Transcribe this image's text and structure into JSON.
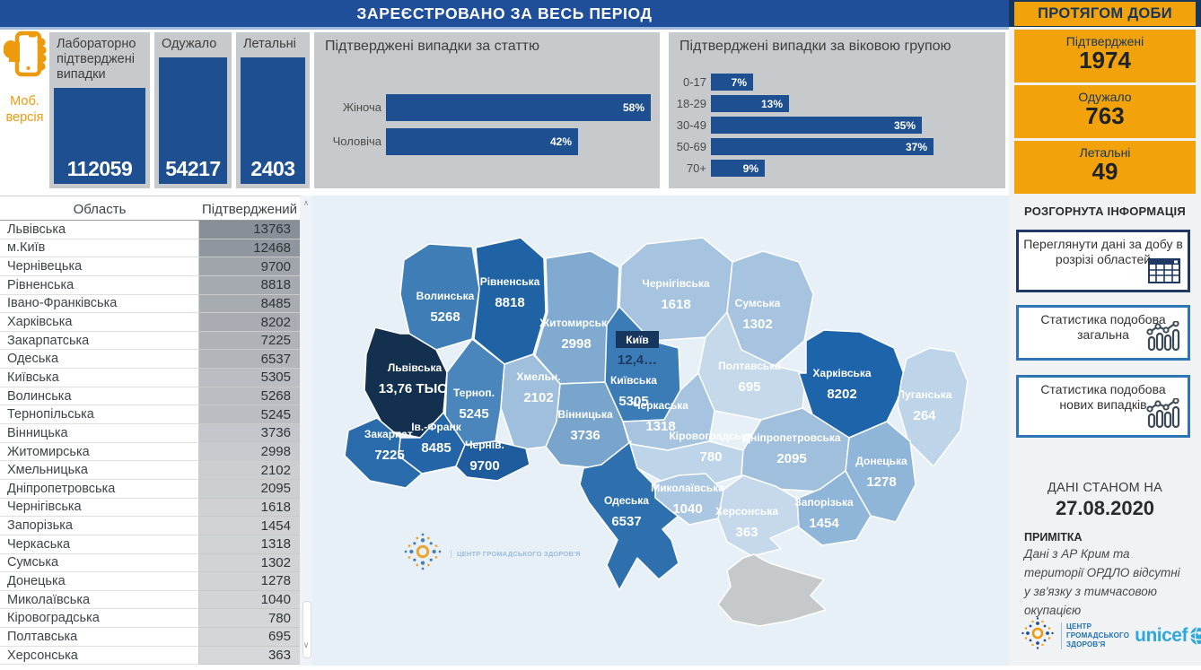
{
  "header": {
    "title": "ЗАРЕЄСТРОВАНО ЗА ВЕСЬ ПЕРІОД",
    "daily_title": "ПРОТЯГОМ ДОБИ"
  },
  "colors": {
    "primary_blue": "#1F4E9A",
    "dark_navy": "#16365C",
    "card_blue": "#1D4F91",
    "accent_orange": "#F2A30B",
    "panel_gray": "#C7CACC",
    "map_background": "#E7EFF7",
    "crimea_gray": "#C6C9CC"
  },
  "mobile": {
    "line1": "Моб.",
    "line2": "версія"
  },
  "kpi_cards": [
    {
      "label": "Лабораторно підтверджені випадки",
      "value": "112059"
    },
    {
      "label": "Одужало",
      "value": "54217"
    },
    {
      "label": "Летальні",
      "value": "2403"
    }
  ],
  "daily_cards": [
    {
      "label": "Підтверджені",
      "value": "1974"
    },
    {
      "label": "Одужало",
      "value": "763"
    },
    {
      "label": "Летальні",
      "value": "49"
    }
  ],
  "sidebar": {
    "section_title": "РОЗГОРНУТА ІНФОРМАЦІЯ",
    "buttons": [
      {
        "label": "Переглянути дані за добу в розрізі областей",
        "icon": "table-icon"
      },
      {
        "label": "Статистика подобова загальна",
        "icon": "line-chart-icon"
      },
      {
        "label": "Статистика подобова нових випадків",
        "icon": "line-chart-icon"
      }
    ],
    "data_as_of_label": "ДАНІ СТАНОМ НА",
    "data_as_of_date": "27.08.2020",
    "note_title": "ПРИМІТКА",
    "note_text": "Дані з АР Крим та території ОРДЛО відсутні у зв'язку з тимчасовою окупацією",
    "phc_logo_lines": "ЦЕНТР ГРОМАДСЬКОГО ЗДОРОВ'Я",
    "unicef_label": "unicef"
  },
  "watermark_text": "ЦЕНТР ГРОМАДСЬКОГО ЗДОРОВ'Я",
  "chart_data": [
    {
      "id": "gender",
      "type": "bar",
      "orientation": "horizontal",
      "title": "Підтверджені випадки за статтю",
      "categories": [
        "Жіноча",
        "Чоловіча"
      ],
      "values": [
        58,
        42
      ],
      "unit": "%",
      "value_labels": [
        "58%",
        "42%"
      ],
      "bar_color": "#1D4F91",
      "xlim": [
        0,
        58
      ]
    },
    {
      "id": "age",
      "type": "bar",
      "orientation": "horizontal",
      "title": "Підтверджені випадки за віковою групою",
      "categories": [
        "0-17",
        "18-29",
        "30-49",
        "50-69",
        "70+"
      ],
      "values": [
        7,
        13,
        35,
        37,
        9
      ],
      "unit": "%",
      "value_labels": [
        "7%",
        "13%",
        "35%",
        "37%",
        "9%"
      ],
      "bar_color": "#1D4F91",
      "xlim": [
        0,
        37
      ]
    },
    {
      "id": "regions-table",
      "type": "table",
      "columns": [
        "Область",
        "Підтверджений"
      ],
      "rows": [
        [
          "Львівська",
          13763
        ],
        [
          "м.Київ",
          12468
        ],
        [
          "Чернівецька",
          9700
        ],
        [
          "Рівненська",
          8818
        ],
        [
          "Івано-Франківська",
          8485
        ],
        [
          "Харківська",
          8202
        ],
        [
          "Закарпатська",
          7225
        ],
        [
          "Одеська",
          6537
        ],
        [
          "Київська",
          5305
        ],
        [
          "Волинська",
          5268
        ],
        [
          "Тернопільська",
          5245
        ],
        [
          "Вінницька",
          3736
        ],
        [
          "Житомирська",
          2998
        ],
        [
          "Хмельницька",
          2102
        ],
        [
          "Дніпропетровська",
          2095
        ],
        [
          "Чернігівська",
          1618
        ],
        [
          "Запорізька",
          1454
        ],
        [
          "Черкаська",
          1318
        ],
        [
          "Сумська",
          1302
        ],
        [
          "Донецька",
          1278
        ],
        [
          "Миколаївська",
          1040
        ],
        [
          "Кіровоградська",
          780
        ],
        [
          "Полтавська",
          695
        ],
        [
          "Херсонська",
          363
        ]
      ]
    },
    {
      "id": "map",
      "type": "heatmap",
      "subtype": "choropleth-ukraine",
      "regions": [
        {
          "key": "volyn",
          "name": "Волинська",
          "value": "5268",
          "fill": "#3E7DB6"
        },
        {
          "key": "rivne",
          "name": "Рівненська",
          "value": "8818",
          "fill": "#2063A5"
        },
        {
          "key": "zhytomyr",
          "name": "Житомирська",
          "value": "2998",
          "fill": "#80AACF"
        },
        {
          "key": "chernihiv",
          "name": "Чернігівська",
          "value": "1618",
          "fill": "#A6C4DF"
        },
        {
          "key": "sumy",
          "name": "Сумська",
          "value": "1302",
          "fill": "#A6C4DF"
        },
        {
          "key": "kyivska",
          "name": "Київська",
          "value": "5305",
          "fill": "#3C7CB6"
        },
        {
          "key": "poltava",
          "name": "Полтавська",
          "value": "695",
          "fill": "#C5D9EB"
        },
        {
          "key": "kharkiv",
          "name": "Харківська",
          "value": "8202",
          "fill": "#1E64AB"
        },
        {
          "key": "luhansk",
          "name": "Луганська",
          "value": "264",
          "fill": "#BDD4E9"
        },
        {
          "key": "lviv",
          "name": "Львівська",
          "value": "13,76 ТЫС.",
          "fill": "#14304F"
        },
        {
          "key": "ternopil",
          "name": "Терноп.",
          "value": "5245",
          "fill": "#4A86BC"
        },
        {
          "key": "khmel",
          "name": "Хмельн.",
          "value": "2102",
          "fill": "#9FBFDD"
        },
        {
          "key": "vinnytsia",
          "name": "Вінницька",
          "value": "3736",
          "fill": "#79A5CD"
        },
        {
          "key": "cherkasy",
          "name": "Черкаська",
          "value": "1318",
          "fill": "#A6C4DF"
        },
        {
          "key": "ivano",
          "name": "Ів.-Франк",
          "value": "8485",
          "fill": "#2365A6"
        },
        {
          "key": "zakarpattia",
          "name": "Закарпат.",
          "value": "7225",
          "fill": "#2A6CAB"
        },
        {
          "key": "chernivtsi",
          "name": "Чернів.",
          "value": "9700",
          "fill": "#1E5C9E"
        },
        {
          "key": "kirovohrad",
          "name": "Кіровоградська",
          "value": "780",
          "fill": "#BDD4E9"
        },
        {
          "key": "dnipro",
          "name": "Дніпропетровська",
          "value": "2095",
          "fill": "#9FBFDD"
        },
        {
          "key": "donetsk",
          "name": "Донецька",
          "value": "1278",
          "fill": "#8FB5D8"
        },
        {
          "key": "odesa",
          "name": "Одеська",
          "value": "6537",
          "fill": "#2E70AD"
        },
        {
          "key": "mykolaiv",
          "name": "Миколаївська",
          "value": "1040",
          "fill": "#ABC7E1"
        },
        {
          "key": "kherson",
          "name": "Херсонська",
          "value": "363",
          "fill": "#C5D9EB"
        },
        {
          "key": "zaporizhzhia",
          "name": "Запорізька",
          "value": "1454",
          "fill": "#8FB5D8"
        },
        {
          "key": "kyiv-city",
          "name": "Київ",
          "value": "12,4…",
          "fill": "#17365D"
        },
        {
          "key": "crimea",
          "name": "",
          "value": "",
          "fill": "#C6C9CC"
        }
      ]
    }
  ]
}
